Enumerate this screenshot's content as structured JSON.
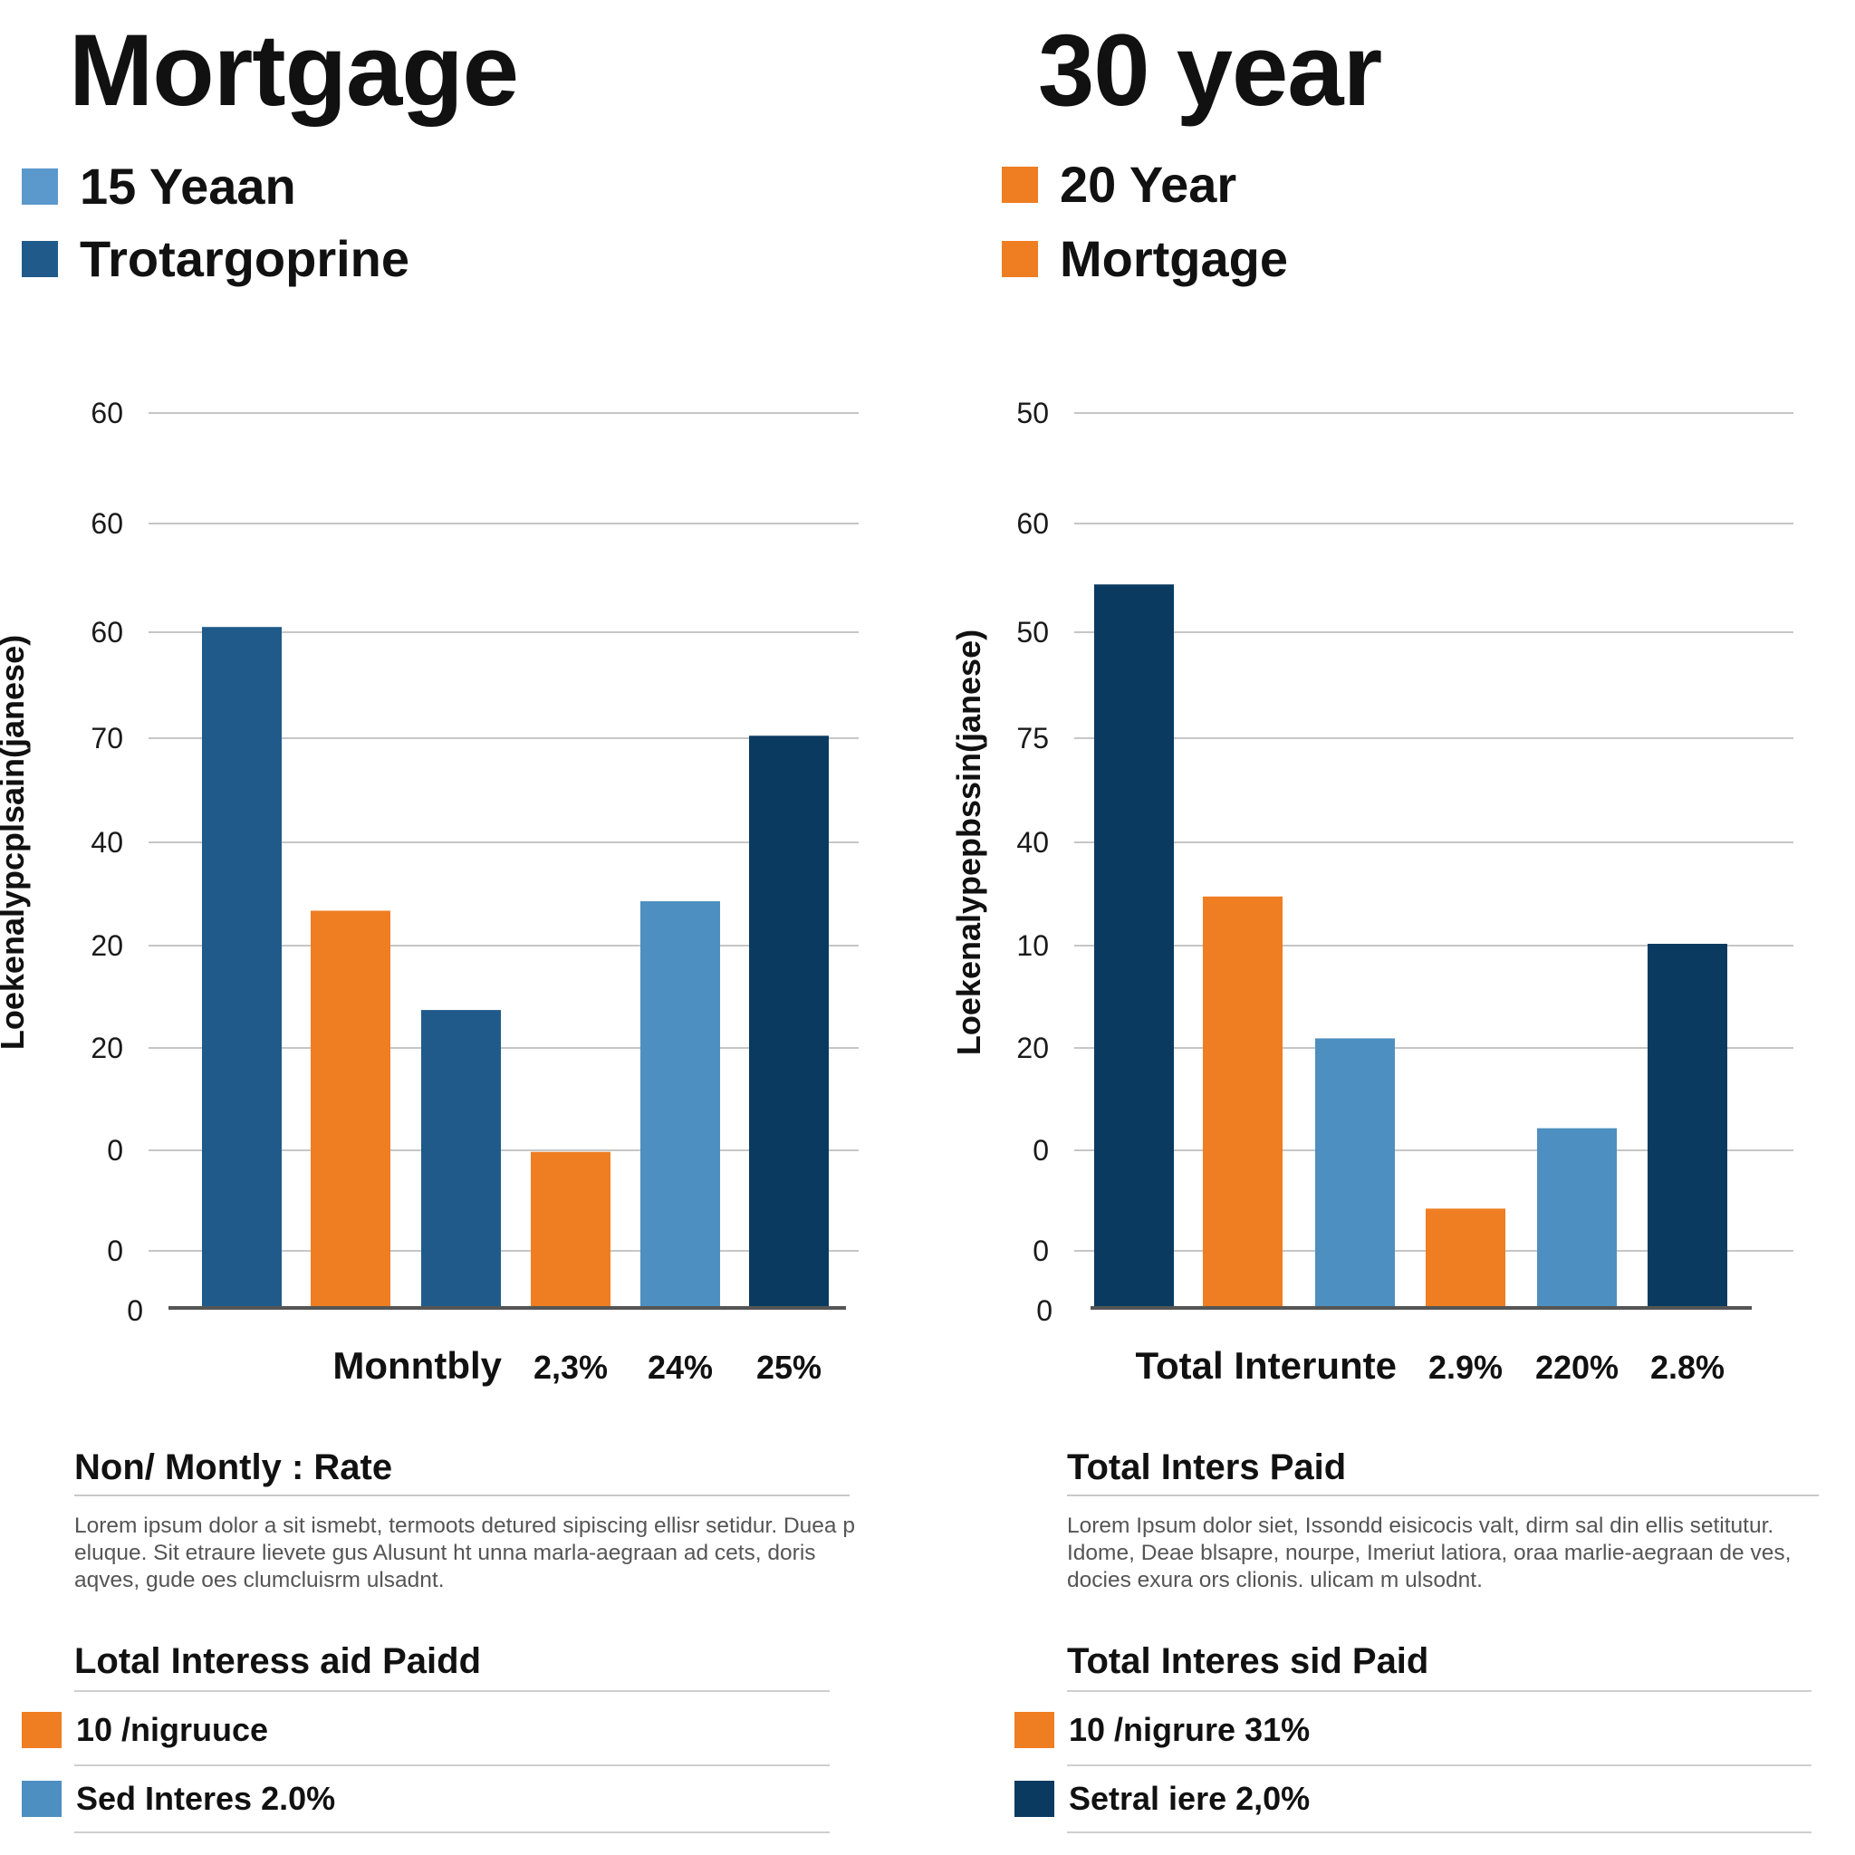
{
  "colors": {
    "dark_navy": "#0a3a60",
    "mid_blue": "#1f5a8a",
    "light_blue": "#4d8fc0",
    "legend_light_blue": "#5b98cc",
    "orange": "#ef7d22"
  },
  "left": {
    "title": "Mortgage",
    "legend": [
      {
        "label": "15 Yeaan",
        "color": "#5b98cc"
      },
      {
        "label": "Trotargoprine",
        "color": "#1f5a8a"
      }
    ],
    "chart_data": {
      "type": "bar",
      "ylabel": "Loekenalypcplsain(janese)",
      "y_tick_labels": [
        "60",
        "60",
        "60",
        "70",
        "40",
        "20",
        "20",
        "0",
        "0",
        "0"
      ],
      "categories": [
        "",
        "",
        "",
        "2,3%",
        "24%",
        "25%"
      ],
      "x_label_prefix": "Monntbly",
      "values": [
        72,
        42,
        31.5,
        16.5,
        43,
        60.5
      ],
      "bar_colors": [
        "#1f5a8a",
        "#ef7d22",
        "#1f5a8a",
        "#ef7d22",
        "#4d8fc0",
        "#0a3a60"
      ],
      "ylim": [
        0,
        88
      ]
    },
    "section1": {
      "title": "Non/ Montly : Rate",
      "body": "Lorem ipsum dolor a sit ismebt, termoots detured sipiscing ellisr setidur. Duea p eluque. Sit etraure lievete gus Alusunt ht unna marla-aegraan ad cets, doris aqves, gude oes clumcluisrm ulsadnt."
    },
    "section2": {
      "title": "Lotal Interess aid Paidd",
      "stats": [
        {
          "label": "10 /nigruuce",
          "color": "#ef7d22"
        },
        {
          "label": "Sed Interes 2.0%",
          "color": "#4d8fc0"
        }
      ]
    }
  },
  "right": {
    "title": "30 year",
    "legend": [
      {
        "label": "20 Year",
        "color": "#ef7d22"
      },
      {
        "label": "Mortgage",
        "color": "#ef7d22"
      }
    ],
    "chart_data": {
      "type": "bar",
      "ylabel": "Loekenalypepbssin(janese)",
      "y_tick_labels": [
        "50",
        "60",
        "50",
        "75",
        "40",
        "10",
        "20",
        "0",
        "0",
        "0"
      ],
      "categories": [
        "",
        "",
        "",
        "2.9%",
        "220%",
        "2.8%"
      ],
      "x_label_prefix": "Total Interunte",
      "values": [
        76.5,
        43.5,
        28.5,
        10.5,
        19,
        38.5
      ],
      "bar_colors": [
        "#0a3a60",
        "#ef7d22",
        "#4d8fc0",
        "#ef7d22",
        "#4d8fc0",
        "#0a3a60"
      ],
      "ylim": [
        0,
        88
      ]
    },
    "section1": {
      "title": "Total Inters Paid",
      "body": "Lorem Ipsum dolor siet, Issondd eisicocis valt, dirm sal din ellis setitutur. Idome, Deae blsapre, nourpe, Imeriut latiora, oraa marlie-aegraan de ves, docies exura ors clionis. ulicam m ulsodnt."
    },
    "section2": {
      "title": "Total Interes sid Paid",
      "stats": [
        {
          "label": "10 /nigrure 31%",
          "color": "#ef7d22"
        },
        {
          "label": "Setral iere 2,0%",
          "color": "#0a3a60"
        }
      ]
    }
  }
}
